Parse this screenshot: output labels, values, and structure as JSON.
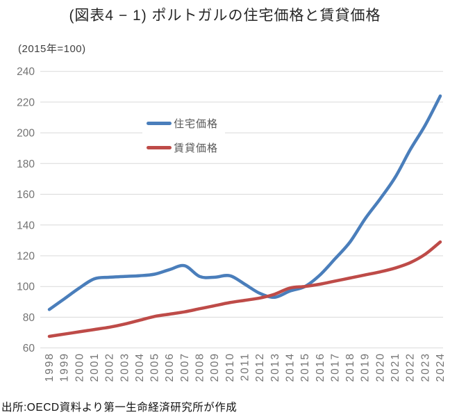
{
  "chart_data": {
    "type": "line",
    "title": "(図表4 − 1) ポルトガルの住宅価格と賃貸価格",
    "unit_note": "(2015年=100)",
    "categories": [
      "1998",
      "1999",
      "2000",
      "2001",
      "2002",
      "2003",
      "2004",
      "2005",
      "2006",
      "2007",
      "2008",
      "2009",
      "2010",
      "2011",
      "2012",
      "2013",
      "2014",
      "2015",
      "2016",
      "2017",
      "2018",
      "2019",
      "2020",
      "2021",
      "2022",
      "2023",
      "2024"
    ],
    "series": [
      {
        "name": "住宅価格",
        "color": "#4A7EBB",
        "values": [
          85,
          92,
          99,
          105,
          106,
          106.5,
          107,
          108,
          111,
          113.5,
          106.5,
          106,
          107,
          101.5,
          95.5,
          93,
          97,
          100,
          107.5,
          118,
          129,
          144,
          157,
          171,
          189,
          205,
          224
        ]
      },
      {
        "name": "賃貸価格",
        "color": "#BE4B48",
        "values": [
          67.5,
          69,
          70.5,
          72,
          73.5,
          75.5,
          78,
          80.5,
          82,
          83.5,
          85.5,
          87.5,
          89.5,
          91,
          92.5,
          95,
          99,
          100,
          101.5,
          103.5,
          105.5,
          107.5,
          109.5,
          112,
          115.5,
          121,
          129
        ]
      }
    ],
    "ylim": [
      60,
      240
    ],
    "ytick_step": 20,
    "yticks": [
      240,
      220,
      200,
      180,
      160,
      140,
      120,
      100,
      80,
      60
    ],
    "grid": true,
    "smoothed_lines": true,
    "legend_position": "inside-upper-left",
    "tick_label_color": "#737373",
    "gridline_color": "#D9D9D9",
    "source": "出所:OECD資料より第一生命経済研究所が作成"
  }
}
